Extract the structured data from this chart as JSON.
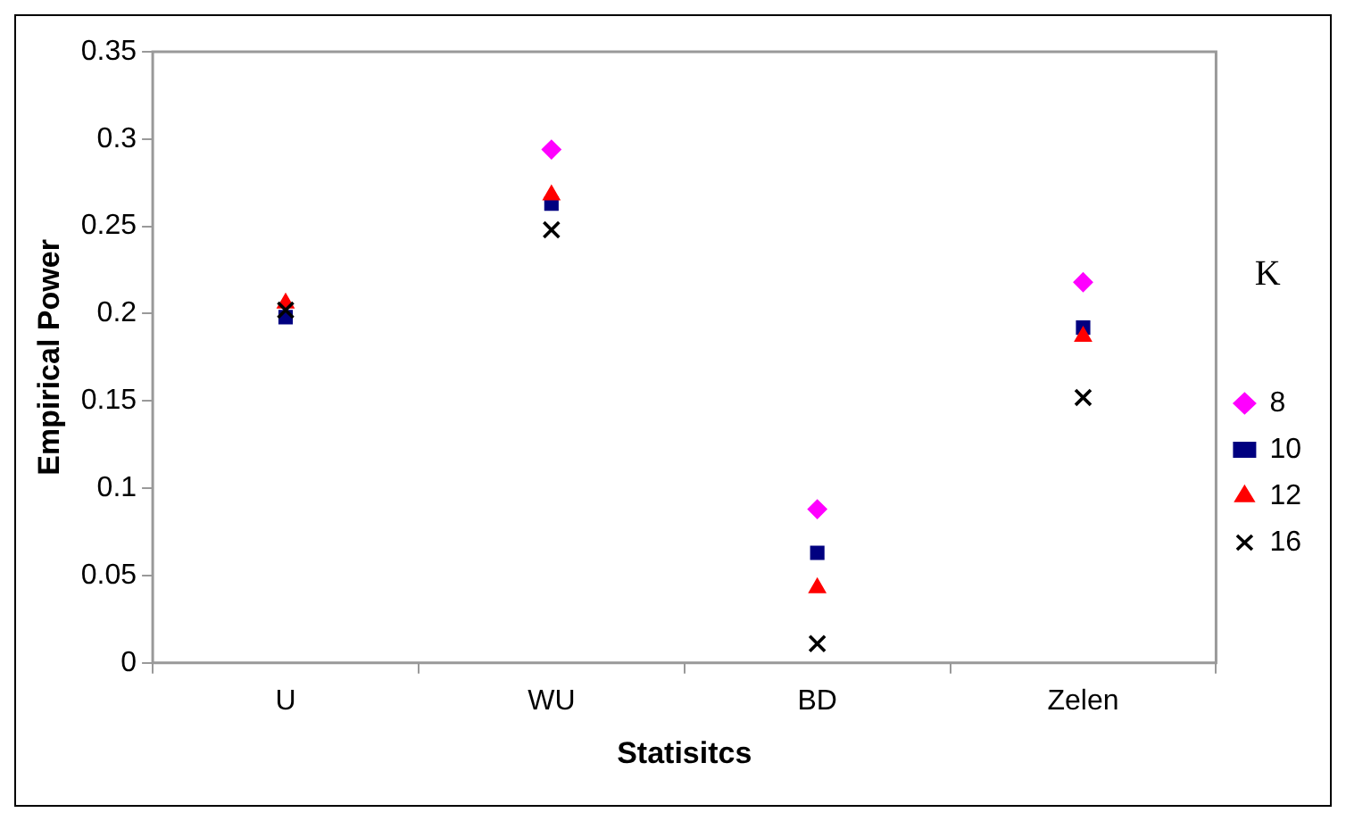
{
  "chart_data": {
    "type": "scatter",
    "xlabel": "Statisitcs",
    "ylabel": "Empirical Power",
    "legend_title": "K",
    "categories": [
      "U",
      "WU",
      "BD",
      "Zelen"
    ],
    "series": [
      {
        "name": "8",
        "color": "#ff00ff",
        "marker": "diamond",
        "values": [
          null,
          0.294,
          0.088,
          0.218
        ]
      },
      {
        "name": "10",
        "color": "#000080",
        "marker": "square",
        "values": [
          0.198,
          0.263,
          0.063,
          0.192
        ]
      },
      {
        "name": "12",
        "color": "#ff0000",
        "marker": "triangle",
        "values": [
          0.206,
          0.268,
          0.043,
          0.187
        ]
      },
      {
        "name": "16",
        "color": "#000000",
        "marker": "cross",
        "values": [
          0.202,
          0.248,
          0.011,
          0.152
        ]
      }
    ],
    "ylim": [
      0,
      0.35
    ],
    "yticks": [
      0,
      0.05,
      0.1,
      0.15,
      0.2,
      0.25,
      0.3,
      0.35
    ],
    "grid": false,
    "legend": "right"
  }
}
